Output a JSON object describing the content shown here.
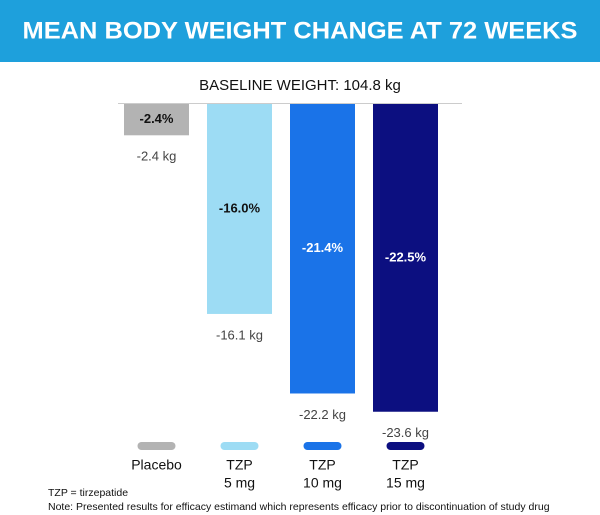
{
  "chart_data": {
    "type": "bar",
    "title": "MEAN BODY WEIGHT CHANGE AT 72 WEEKS",
    "subtitle": "BASELINE WEIGHT: 104.8 kg",
    "categories": [
      [
        "Placebo"
      ],
      [
        "TZP",
        "5 mg"
      ],
      [
        "TZP",
        "10 mg"
      ],
      [
        "TZP",
        "15 mg"
      ]
    ],
    "values": [
      -2.4,
      -16.1,
      -22.2,
      -23.6
    ],
    "value_labels": [
      "-2.4 kg",
      "-16.1 kg",
      "-22.2 kg",
      "-23.6 kg"
    ],
    "percent_change": {
      "values": [
        -2.4,
        -16.0,
        -21.4,
        -22.5
      ],
      "value_labels": [
        "-2.4%",
        "-16.0%",
        "-21.4%",
        "-22.5%"
      ]
    },
    "colors": [
      "#b3b3b3",
      "#9ddcf4",
      "#1a73e8",
      "#0c0f80"
    ],
    "ylim": [
      -25,
      0
    ],
    "footnotes": [
      "TZP = tirzepatide",
      "Note: Presented results for efficacy estimand which represents efficacy prior to discontinuation of study drug"
    ]
  }
}
